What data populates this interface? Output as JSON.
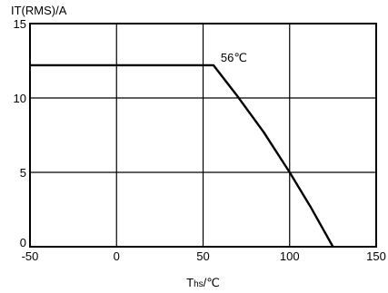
{
  "chart_data": {
    "type": "line",
    "title": "",
    "ylabel": "IT(RMS)/A",
    "xlabel_main": "T",
    "xlabel_sub": "hs",
    "xlabel_unit": "/℃",
    "xlim": [
      -50,
      150
    ],
    "ylim": [
      0,
      15
    ],
    "xticks": [
      -50,
      0,
      50,
      100,
      150
    ],
    "yticks": [
      0,
      5,
      10,
      15
    ],
    "grid": true,
    "series": [
      {
        "x": [
          -50,
          56,
          70,
          85,
          100,
          112,
          125
        ],
        "y": [
          12.2,
          12.2,
          10.1,
          7.7,
          5.0,
          2.7,
          0
        ]
      }
    ],
    "annotations": [
      {
        "text": "56℃",
        "x": 56,
        "y": 12.2
      }
    ]
  }
}
